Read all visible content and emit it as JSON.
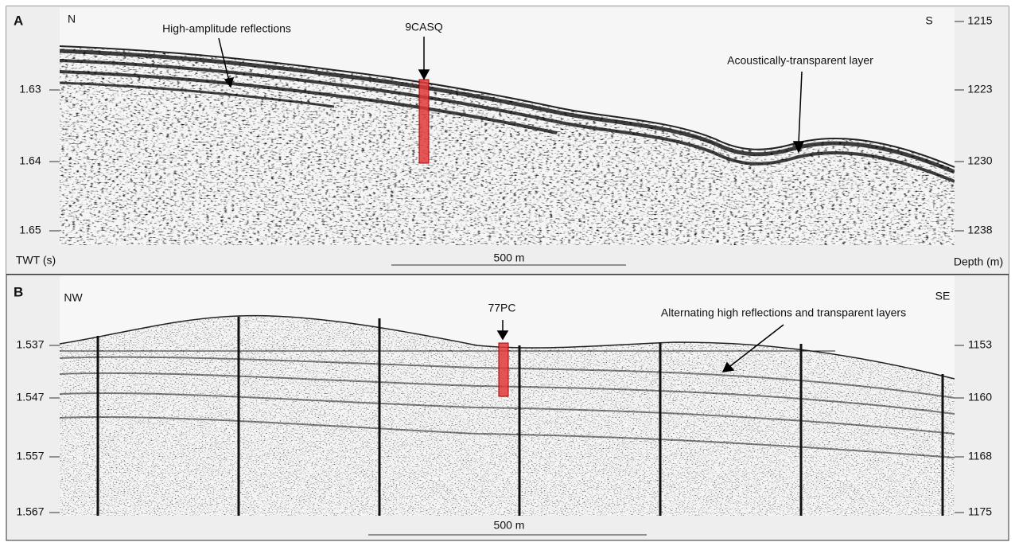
{
  "panels": [
    {
      "label": "A",
      "left_direction": "N",
      "right_direction": "S",
      "left_axis_title": "TWT (s)",
      "right_axis_title": "Depth (m)",
      "left_ticks": [
        "1.63",
        "1.64",
        "1.65"
      ],
      "right_ticks": [
        "1215",
        "1223",
        "1230",
        "1238"
      ],
      "scale_bar": "500 m",
      "core": "9CASQ",
      "annotations": [
        "High-amplitude reflections",
        "Acoustically-transparent layer"
      ]
    },
    {
      "label": "B",
      "left_direction": "NW",
      "right_direction": "SE",
      "left_axis_title": null,
      "right_axis_title": null,
      "left_ticks": [
        "1.537",
        "1.547",
        "1.557",
        "1.567"
      ],
      "right_ticks": [
        "1153",
        "1160",
        "1168",
        "1175"
      ],
      "scale_bar": "500 m",
      "core": "77PC",
      "annotations": [
        "Alternating high reflections and transparent layers"
      ]
    }
  ]
}
